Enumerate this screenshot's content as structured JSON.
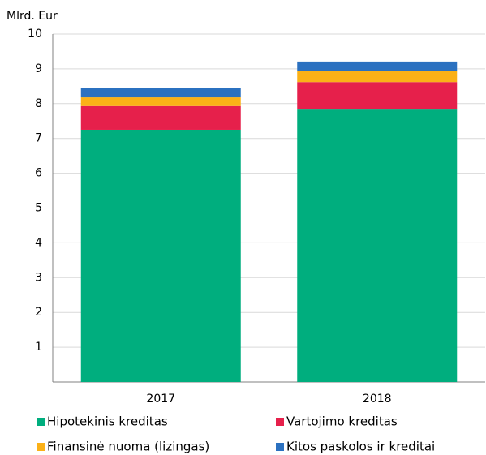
{
  "chart_data": {
    "type": "stacked_bar",
    "ylabel": "Mlrd. Eur",
    "categories": [
      "2017",
      "2018"
    ],
    "series": [
      {
        "name": "Hipotekinis kreditas",
        "color": "#00ae7e",
        "values": [
          7.25,
          7.83
        ]
      },
      {
        "name": "Vartojimo kreditas",
        "color": "#e6204b",
        "values": [
          0.68,
          0.79
        ]
      },
      {
        "name": "Finansinė nuoma (lizingas)",
        "color": "#fbb117",
        "values": [
          0.25,
          0.31
        ]
      },
      {
        "name": "Kitos paskolos ir kreditai",
        "color": "#2b71c0",
        "values": [
          0.28,
          0.28
        ]
      }
    ],
    "ylim": [
      0,
      10
    ],
    "yticks": [
      1,
      2,
      3,
      4,
      5,
      6,
      7,
      8,
      9,
      10
    ],
    "grid": true
  }
}
